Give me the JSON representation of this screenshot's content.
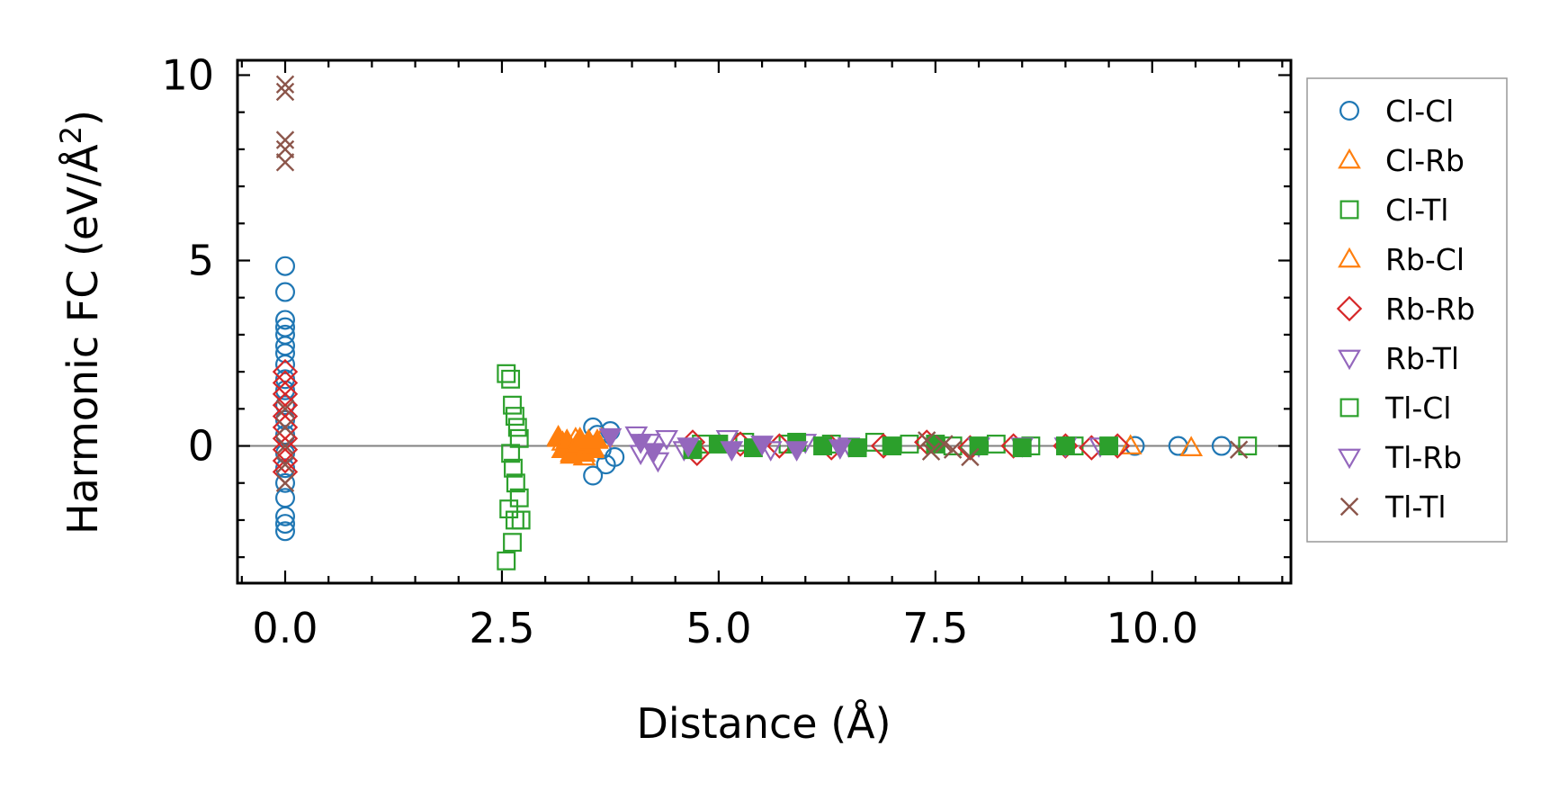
{
  "chart_data": {
    "type": "scatter",
    "xlabel": "Distance (Å)",
    "ylabel_main": "Harmonic FC (eV/Å",
    "ylabel_sup": "2",
    "ylabel_tail": ")",
    "xlim": [
      -0.55,
      11.6
    ],
    "ylim": [
      -3.7,
      10.4
    ],
    "x_ticks": [
      0.0,
      2.5,
      5.0,
      7.5,
      10.0
    ],
    "x_tick_labels": [
      "0.0",
      "2.5",
      "5.0",
      "7.5",
      "10.0"
    ],
    "y_ticks": [
      0,
      5,
      10
    ],
    "y_tick_labels": [
      "0",
      "5",
      "10"
    ],
    "zero_line": true,
    "grid": false,
    "legend_position": "outside-right",
    "series": [
      {
        "name": "Cl-Cl",
        "marker": "circle",
        "filled": false,
        "color": "#1f77b4",
        "points": [
          [
            0,
            4.85
          ],
          [
            0,
            4.15
          ],
          [
            0,
            3.4
          ],
          [
            0,
            3.2
          ],
          [
            0,
            3.0
          ],
          [
            0,
            2.7
          ],
          [
            0,
            2.5
          ],
          [
            0,
            2.2
          ],
          [
            0,
            1.8
          ],
          [
            0,
            1.5
          ],
          [
            0,
            1.1
          ],
          [
            0,
            0.7
          ],
          [
            0,
            0.3
          ],
          [
            0,
            -0.2
          ],
          [
            0,
            -0.6
          ],
          [
            0,
            -1.0
          ],
          [
            0,
            -1.4
          ],
          [
            0,
            -1.9
          ],
          [
            0,
            -2.1
          ],
          [
            0,
            -2.3
          ],
          [
            3.55,
            0.5
          ],
          [
            3.6,
            0.3
          ],
          [
            3.65,
            -0.1
          ],
          [
            3.7,
            -0.5
          ],
          [
            3.55,
            -0.8
          ],
          [
            3.75,
            0.4
          ],
          [
            3.8,
            -0.3
          ],
          [
            9.8,
            0.0
          ],
          [
            10.3,
            0.0
          ],
          [
            10.8,
            0.0
          ]
        ]
      },
      {
        "name": "Cl-Rb",
        "marker": "triangle-up",
        "filled": false,
        "color": "#ff7f0e",
        "points": [
          [
            3.15,
            0.25
          ],
          [
            3.2,
            0.1
          ],
          [
            3.25,
            -0.05
          ],
          [
            3.3,
            -0.2
          ],
          [
            3.35,
            0.2
          ],
          [
            3.4,
            0.05
          ],
          [
            3.45,
            -0.3
          ],
          [
            3.5,
            0.15
          ],
          [
            3.55,
            -0.1
          ],
          [
            3.65,
            0.2
          ],
          [
            9.75,
            0.0
          ],
          [
            10.45,
            -0.05
          ]
        ]
      },
      {
        "name": "Cl-Tl",
        "marker": "square",
        "filled": false,
        "color": "#2ca02c",
        "points": [
          [
            2.55,
            1.95
          ],
          [
            2.6,
            1.8
          ],
          [
            2.62,
            1.1
          ],
          [
            2.65,
            0.8
          ],
          [
            2.68,
            0.5
          ],
          [
            2.7,
            0.2
          ],
          [
            2.6,
            -0.2
          ],
          [
            2.63,
            -0.6
          ],
          [
            2.66,
            -1.0
          ],
          [
            2.7,
            -1.4
          ],
          [
            2.58,
            -1.7
          ],
          [
            2.65,
            -2.0
          ],
          [
            2.62,
            -2.6
          ],
          [
            2.55,
            -3.1
          ],
          [
            2.72,
            -2.0
          ],
          [
            4.8,
            0.05
          ],
          [
            5.3,
            0.1
          ],
          [
            5.8,
            0.05
          ],
          [
            6.3,
            0.05
          ],
          [
            6.8,
            0.1
          ],
          [
            7.2,
            0.05
          ],
          [
            7.7,
            0.0
          ],
          [
            8.2,
            0.05
          ],
          [
            8.6,
            0.0
          ],
          [
            9.1,
            0.0
          ],
          [
            11.1,
            0.0
          ]
        ]
      },
      {
        "name": "Rb-Cl",
        "marker": "triangle-up",
        "filled": true,
        "color": "#ff7f0e",
        "points": [
          [
            3.15,
            0.2
          ],
          [
            3.2,
            -0.1
          ],
          [
            3.25,
            0.15
          ],
          [
            3.3,
            -0.25
          ],
          [
            3.35,
            0.0
          ],
          [
            3.4,
            0.2
          ],
          [
            3.45,
            -0.2
          ],
          [
            3.5,
            0.1
          ],
          [
            3.55,
            -0.05
          ],
          [
            3.6,
            0.15
          ]
        ]
      },
      {
        "name": "Rb-Rb",
        "marker": "diamond",
        "filled": false,
        "color": "#d62728",
        "points": [
          [
            0,
            2.0
          ],
          [
            0,
            1.7
          ],
          [
            0,
            1.4
          ],
          [
            0,
            1.1
          ],
          [
            0,
            0.8
          ],
          [
            0,
            0.5
          ],
          [
            0,
            0.2
          ],
          [
            0,
            -0.1
          ],
          [
            0,
            -0.4
          ],
          [
            0,
            -0.7
          ],
          [
            4.7,
            0.1
          ],
          [
            4.75,
            -0.2
          ],
          [
            5.25,
            0.05
          ],
          [
            5.7,
            0.0
          ],
          [
            6.3,
            -0.05
          ],
          [
            6.9,
            0.0
          ],
          [
            7.4,
            0.1
          ],
          [
            7.9,
            -0.05
          ],
          [
            8.4,
            0.0
          ],
          [
            9.0,
            0.0
          ],
          [
            9.3,
            -0.05
          ],
          [
            9.6,
            0.0
          ]
        ]
      },
      {
        "name": "Rb-Tl",
        "marker": "triangle-down",
        "filled": false,
        "color": "#9467bd",
        "points": [
          [
            4.05,
            0.3
          ],
          [
            4.1,
            -0.2
          ],
          [
            4.2,
            0.1
          ],
          [
            4.3,
            -0.4
          ],
          [
            4.4,
            0.2
          ],
          [
            4.6,
            -0.1
          ],
          [
            5.1,
            0.2
          ],
          [
            5.6,
            -0.1
          ],
          [
            6.0,
            0.1
          ],
          [
            6.5,
            0.0
          ],
          [
            8.0,
            0.0
          ],
          [
            8.5,
            0.0
          ],
          [
            9.0,
            0.0
          ],
          [
            9.4,
            0.0
          ]
        ]
      },
      {
        "name": "Tl-Cl",
        "marker": "square",
        "filled": true,
        "color": "#2ca02c",
        "points": [
          [
            4.7,
            -0.1
          ],
          [
            5.0,
            0.05
          ],
          [
            5.4,
            -0.05
          ],
          [
            5.9,
            0.1
          ],
          [
            6.2,
            0.0
          ],
          [
            6.6,
            -0.05
          ],
          [
            7.0,
            0.0
          ],
          [
            7.5,
            0.05
          ],
          [
            8.0,
            0.0
          ],
          [
            8.5,
            -0.05
          ],
          [
            9.0,
            0.0
          ],
          [
            9.5,
            0.0
          ]
        ]
      },
      {
        "name": "Tl-Rb",
        "marker": "triangle-down",
        "filled": true,
        "color": "#9467bd",
        "points": [
          [
            3.75,
            0.25
          ],
          [
            4.1,
            0.1
          ],
          [
            4.25,
            -0.15
          ],
          [
            4.65,
            0.0
          ],
          [
            5.15,
            -0.1
          ],
          [
            5.5,
            0.05
          ],
          [
            5.9,
            -0.1
          ],
          [
            6.4,
            -0.05
          ]
        ]
      },
      {
        "name": "Tl-Tl",
        "marker": "x",
        "filled": false,
        "color": "#8c564b",
        "points": [
          [
            0,
            9.75
          ],
          [
            0,
            9.55
          ],
          [
            0,
            8.25
          ],
          [
            0,
            8.0
          ],
          [
            0,
            7.65
          ],
          [
            0,
            1.0
          ],
          [
            0,
            0.5
          ],
          [
            0,
            0.0
          ],
          [
            0,
            -0.5
          ],
          [
            0,
            -1.0
          ],
          [
            7.4,
            0.15
          ],
          [
            7.45,
            -0.15
          ],
          [
            7.6,
            0.05
          ],
          [
            7.7,
            -0.1
          ],
          [
            7.9,
            -0.3
          ],
          [
            11.0,
            -0.1
          ]
        ]
      }
    ]
  }
}
